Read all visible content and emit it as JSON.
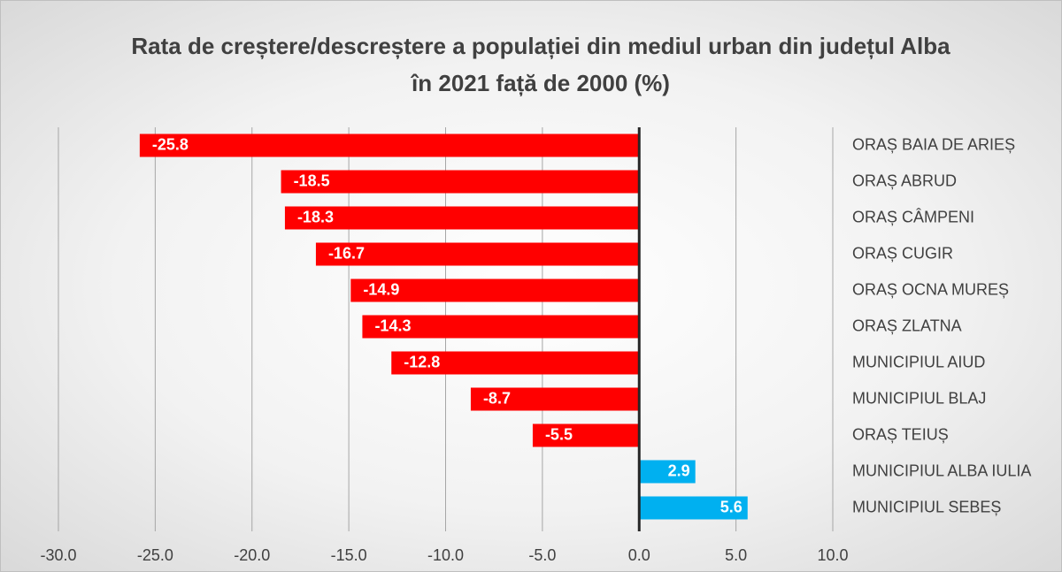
{
  "chart_data": {
    "type": "barh",
    "title": "Rata de creștere/descreștere a populației din mediul urban din județul Alba în 2021 față de 2000 (%)",
    "categories": [
      "ORAȘ BAIA DE ARIEȘ",
      "ORAȘ ABRUD",
      "ORAȘ CÂMPENI",
      "ORAȘ CUGIR",
      "ORAȘ OCNA MUREȘ",
      "ORAȘ ZLATNA",
      "MUNICIPIUL AIUD",
      "MUNICIPIUL BLAJ",
      "ORAȘ TEIUȘ",
      "MUNICIPIUL ALBA IULIA",
      "MUNICIPIUL SEBEȘ"
    ],
    "values": [
      -25.8,
      -18.5,
      -18.3,
      -16.7,
      -14.9,
      -14.3,
      -12.8,
      -8.7,
      -5.5,
      2.9,
      5.6
    ],
    "colors": [
      "#ff0000",
      "#ff0000",
      "#ff0000",
      "#ff0000",
      "#ff0000",
      "#ff0000",
      "#ff0000",
      "#ff0000",
      "#ff0000",
      "#00b0f0",
      "#00b0f0"
    ],
    "xlim": [
      -30,
      10
    ],
    "xticks": [
      {
        "value": -30,
        "label": "-30.0"
      },
      {
        "value": -25,
        "label": "-25.0"
      },
      {
        "value": -20,
        "label": "-20.0"
      },
      {
        "value": -15,
        "label": "-15.0"
      },
      {
        "value": -10,
        "label": "-10.0"
      },
      {
        "value": -5,
        "label": "-5.0"
      },
      {
        "value": 0,
        "label": "0.0"
      },
      {
        "value": 5,
        "label": "5.0"
      },
      {
        "value": 10,
        "label": "10.0"
      }
    ],
    "grid": true
  }
}
